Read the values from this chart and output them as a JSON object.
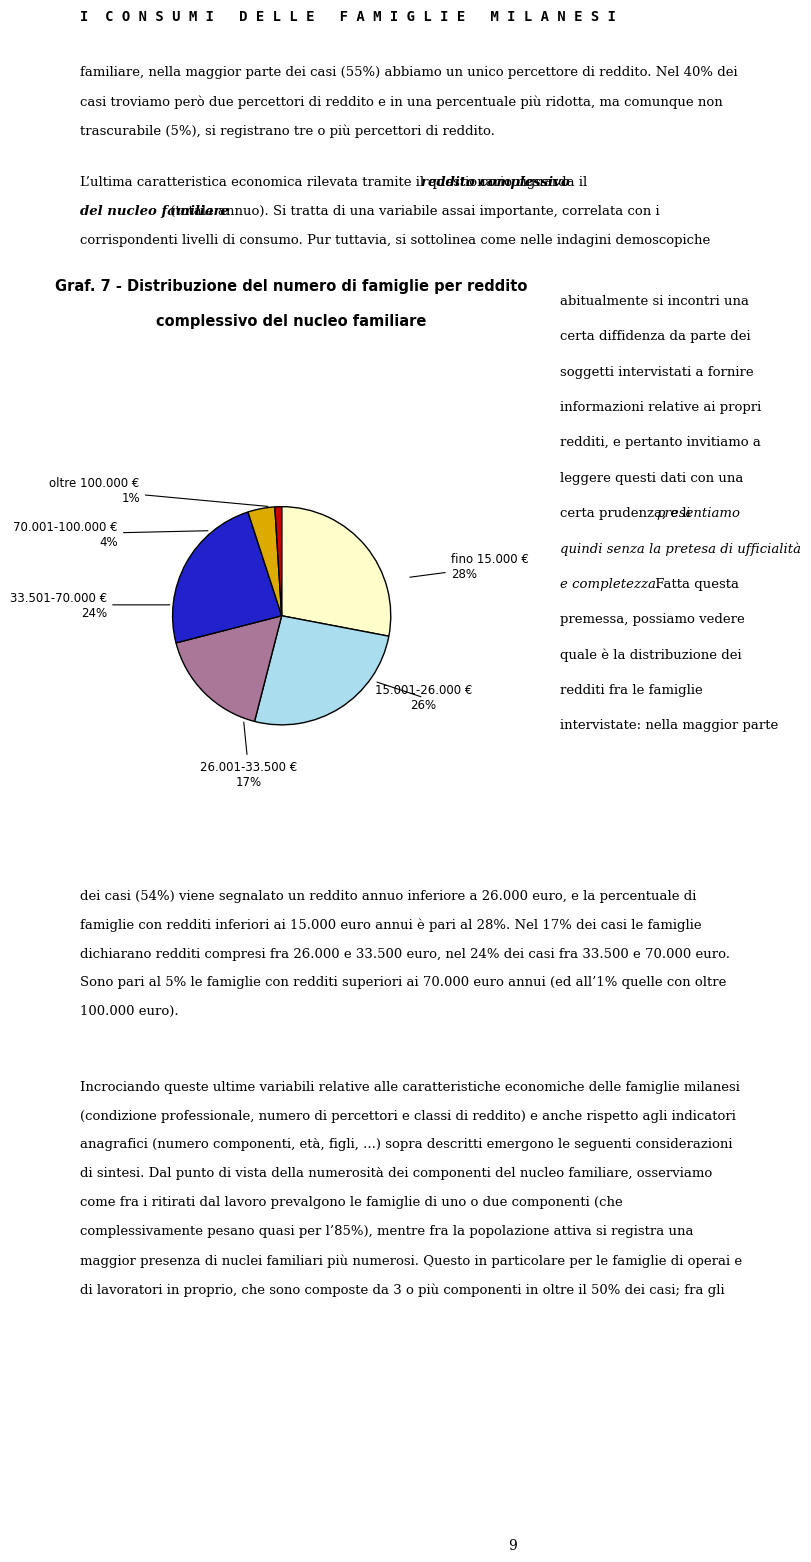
{
  "title_line1": "Graf. 7 - Distribuzione del numero di famiglie per reddito",
  "title_line2": "complessivo del nucleo familiare",
  "slices": [
    {
      "label": "fino 15.000 €\n28%",
      "value": 28,
      "color": "#FFFFCC",
      "label_short": "fino 15.000 €",
      "pct": "28%"
    },
    {
      "label": "15.001-26.000 €\n26%",
      "value": 26,
      "color": "#AADDEE",
      "label_short": "15.001-26.000 €",
      "pct": "26%"
    },
    {
      "label": "26.001-33.500 €\n17%",
      "value": 17,
      "color": "#AA7799",
      "label_short": "26.001-33.500 €",
      "pct": "17%"
    },
    {
      "label": "33.501-70.000 €\n24%",
      "value": 24,
      "color": "#2222CC",
      "label_short": "33.501-70.000 €",
      "pct": "24%"
    },
    {
      "label": "70.001-100.000 €\n4%",
      "value": 4,
      "color": "#DDAA00",
      "label_short": "70.001-100.000 €",
      "pct": "4%"
    },
    {
      "label": "oltre 100.000 €\n1%",
      "value": 1,
      "color": "#CC0000",
      "label_short": "oltre 100.000 €",
      "pct": "1%"
    }
  ],
  "page_title": "I  C O N S U M I   D E L L E   F A M I G L I E   M I L A N E S I",
  "page_number": "9",
  "startangle": 90,
  "body_texts": [
    "familiare, nella maggior parte dei casi (55%) abbiamo un unico percettore di reddito. Nel 40% dei",
    "casi troviamo però due percettori di reddito e in una percentuale più ridotta, ma comunque non",
    "trascurabile (5%), si registrano tre o più percettori di reddito.",
    "",
    "L’ultima caratteristica economica rilevata tramite il questionario riguarda il reddito complessivo",
    "del nucleo familiare (totale annuo). Si tratta di una variabile assai importante, correlata con i",
    "corrispondenti livelli di consumo. Pur tuttavia, si sottolinea come nelle indagini demoscopiche"
  ],
  "right_texts": [
    "abitualmente si incontri una",
    "certa diffidenza da parte dei",
    "soggetti intervistati a fornire",
    "informazioni relative ai propri",
    "redditi, e pertanto invitiamo a",
    "leggere questi dati con una",
    "certa prudenza, e li presentiamo",
    "quindi senza la pretesa di ufficialità",
    "e completezza. Fatta questa",
    "premessa, possiamo vedere",
    "quale è la distribuzione dei",
    "redditi fra le famiglie",
    "intervistate: nella maggior parte"
  ],
  "bottom_texts": [
    "dei casi (54%) viene segnalato un reddito annuo inferiore a 26.000 euro, e la percentuale di",
    "famiglie con redditi inferiori ai 15.000 euro annui è pari al 28%. Nel 17% dei casi le famiglie",
    "dichiarano redditi compresi fra 26.000 e 33.500 euro, nel 24% dei casi fra 33.500 e 70.000 euro.",
    "Sono pari al 5% le famiglie con redditi superiori ai 70.000 euro annui (ed all’1% quelle con oltre",
    "100.000 euro).",
    "",
    "",
    "Incrociando queste ultime variabili relative alle caratteristiche economiche delle famiglie milanesi",
    "(condizione professionale, numero di percettori e classi di reddito) e anche rispetto agli indicatori",
    "anagrafici (numero componenti, età, figli, ...) sopra descritti emergono le seguenti considerazioni",
    "di sintesi. Dal punto di vista della numerosità dei componenti del nucleo familiare, osserviamo",
    "come fra i ritirati dal lavoro prevalgono le famiglie di uno o due componenti (che",
    "complessivamente pesano quasi per l’85%), mentre fra la popolazione attiva si registra una",
    "maggior presenza di nuclei familiari più numerosi. Questo in particolare per le famiglie di operai e",
    "di lavoratori in proprio, che sono composte da 3 o più componenti in oltre il 50% dei casi; fra gli"
  ]
}
